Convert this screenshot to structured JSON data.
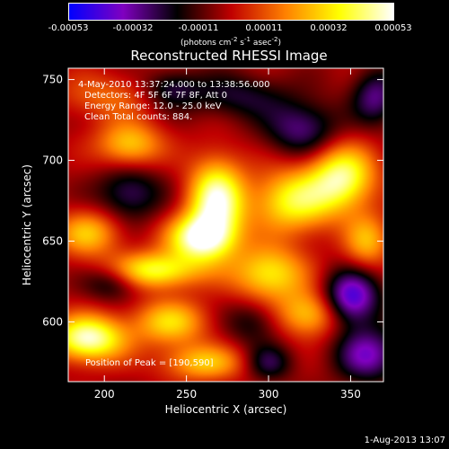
{
  "colorbar": {
    "ticks": [
      "-0.00053",
      "-0.00032",
      "-0.00011",
      "0.00011",
      "0.00032",
      "0.00053"
    ],
    "units": "(photons cm",
    "units_exp1": "-2",
    "units_mid": " s",
    "units_exp2": "-1",
    "units_end": " asec",
    "units_exp3": "-2",
    "units_close": ")"
  },
  "chart_data": {
    "type": "heatmap",
    "title": "Reconstructed RHESSI Image",
    "xlabel": "Heliocentric X (arcsec)",
    "ylabel": "Heliocentric Y (arcsec)",
    "xlim": [
      178,
      370
    ],
    "ylim": [
      563,
      757
    ],
    "xticks": [
      200,
      250,
      300,
      350
    ],
    "yticks": [
      600,
      650,
      700,
      750
    ],
    "value_range": [
      -0.00053,
      0.00053
    ],
    "colormap": [
      "#0000ff",
      "#8000c0",
      "#000000",
      "#c00000",
      "#ff8000",
      "#ffff00",
      "#ffffff"
    ],
    "annotations": [
      "4-May-2010 13:37:24.000 to 13:38:56.000",
      "Detectors: 4F 5F 6F 7F 8F, Att 0",
      "Energy Range: 12.0 - 25.0 keV",
      "Clean    Total counts: 884."
    ],
    "peak_label": "Position of Peak = [190,590]",
    "peak": [
      190,
      590
    ],
    "sources": [
      {
        "x": 268,
        "y": 675,
        "amp": 1.0,
        "sx": 12,
        "sy": 18
      },
      {
        "x": 258,
        "y": 652,
        "amp": 0.95,
        "sx": 14,
        "sy": 10
      },
      {
        "x": 190,
        "y": 590,
        "amp": 1.0,
        "sx": 16,
        "sy": 10
      },
      {
        "x": 230,
        "y": 632,
        "amp": 0.8,
        "sx": 20,
        "sy": 8
      },
      {
        "x": 315,
        "y": 675,
        "amp": 0.75,
        "sx": 18,
        "sy": 14
      },
      {
        "x": 345,
        "y": 690,
        "amp": 0.85,
        "sx": 14,
        "sy": 14
      },
      {
        "x": 300,
        "y": 630,
        "amp": 0.7,
        "sx": 16,
        "sy": 12
      },
      {
        "x": 325,
        "y": 605,
        "amp": 0.6,
        "sx": 14,
        "sy": 10
      },
      {
        "x": 215,
        "y": 710,
        "amp": 0.6,
        "sx": 14,
        "sy": 10
      },
      {
        "x": 190,
        "y": 655,
        "amp": 0.55,
        "sx": 14,
        "sy": 10
      },
      {
        "x": 240,
        "y": 600,
        "amp": 0.6,
        "sx": 16,
        "sy": 10
      },
      {
        "x": 260,
        "y": 575,
        "amp": 0.55,
        "sx": 18,
        "sy": 8
      },
      {
        "x": 360,
        "y": 650,
        "amp": 0.5,
        "sx": 10,
        "sy": 12
      },
      {
        "x": 200,
        "y": 740,
        "amp": 0.3,
        "sx": 20,
        "sy": 10
      },
      {
        "x": 320,
        "y": 720,
        "amp": -0.5,
        "sx": 16,
        "sy": 12
      },
      {
        "x": 350,
        "y": 615,
        "amp": -0.8,
        "sx": 12,
        "sy": 12
      },
      {
        "x": 360,
        "y": 580,
        "amp": -0.6,
        "sx": 14,
        "sy": 12
      },
      {
        "x": 215,
        "y": 680,
        "amp": -0.45,
        "sx": 14,
        "sy": 12
      },
      {
        "x": 205,
        "y": 625,
        "amp": -0.4,
        "sx": 12,
        "sy": 8
      },
      {
        "x": 280,
        "y": 740,
        "amp": -0.35,
        "sx": 22,
        "sy": 10
      },
      {
        "x": 290,
        "y": 600,
        "amp": -0.3,
        "sx": 12,
        "sy": 10
      },
      {
        "x": 240,
        "y": 745,
        "amp": -0.35,
        "sx": 12,
        "sy": 8
      },
      {
        "x": 365,
        "y": 740,
        "amp": -0.5,
        "sx": 10,
        "sy": 12
      },
      {
        "x": 300,
        "y": 575,
        "amp": -0.4,
        "sx": 10,
        "sy": 8
      }
    ]
  },
  "footer": {
    "date": "1-Aug-2013 13:07"
  }
}
